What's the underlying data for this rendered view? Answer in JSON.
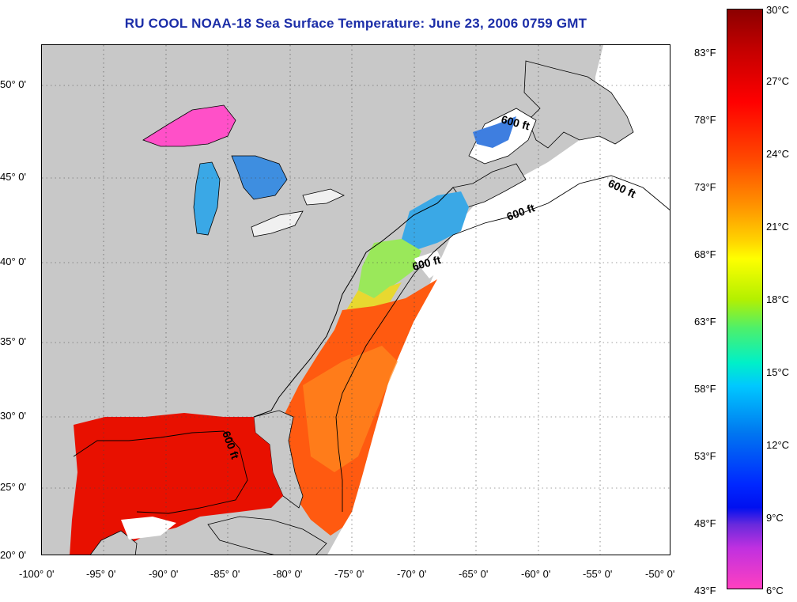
{
  "title": "RU COOL  NOAA-18  Sea Surface Temperature:  June 23, 2006 0759 GMT",
  "map": {
    "lat_ticks": [
      "50° 0'",
      "45° 0'",
      "40° 0'",
      "35° 0'",
      "30° 0'",
      "25° 0'",
      "20° 0'"
    ],
    "lon_ticks": [
      "-100° 0'",
      "-95° 0'",
      "-90° 0'",
      "-85° 0'",
      "-80° 0'",
      "-75° 0'",
      "-70° 0'",
      "-65° 0'",
      "-60° 0'",
      "-55° 0'",
      "-50° 0'"
    ],
    "contour_labels": [
      "600 ft",
      "600 ft",
      "600 ft",
      "600 ft",
      "600 ft"
    ],
    "land_color": "#c8c8c8",
    "no_data_color": "#ffffff"
  },
  "colorbar": {
    "fahrenheit_labels": [
      "83°F",
      "78°F",
      "73°F",
      "68°F",
      "63°F",
      "58°F",
      "53°F",
      "48°F",
      "43°F"
    ],
    "celsius_labels": [
      "30°C",
      "27°C",
      "24°C",
      "21°C",
      "18°C",
      "15°C",
      "12°C",
      "9°C",
      "6°C"
    ]
  }
}
